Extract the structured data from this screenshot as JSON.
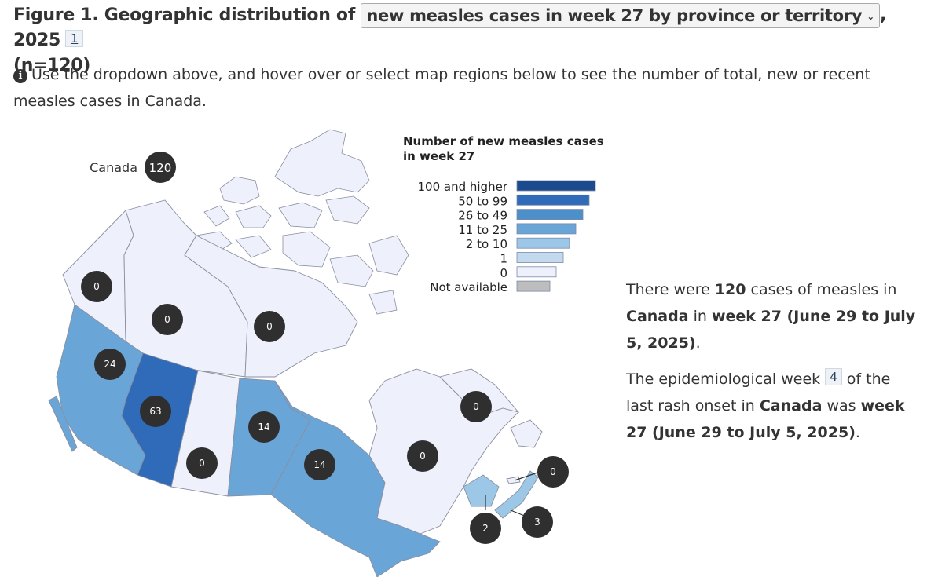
{
  "figure": {
    "title_prefix": "Figure 1. Geographic distribution of",
    "select_value": "new measles cases in week 27 by province or territory",
    "title_suffix": ", 2025",
    "footnote_ref": "1",
    "n_label": "(n=120)"
  },
  "instructions": {
    "icon": "info-icon",
    "text": "Use the dropdown above, and hover over or select map regions below to see the number of total, new or recent measles cases in Canada."
  },
  "map": {
    "national": {
      "label": "Canada",
      "value": "120"
    },
    "region_colors": {
      "very_high": "#1c4a8f",
      "high": "#2f6bb8",
      "mid": "#4d8fc9",
      "low_mid": "#6aa5d8",
      "low": "#9cc7e6",
      "one": "#c3d9ee",
      "zero": "#eef1fb",
      "na": "#bdbdbd",
      "border": "#8a8fa0",
      "bubble": "#2f2f2f"
    },
    "regions": [
      {
        "code": "YT",
        "value": "0",
        "class": "zero"
      },
      {
        "code": "NT",
        "value": "0",
        "class": "zero"
      },
      {
        "code": "NU",
        "value": "0",
        "class": "zero"
      },
      {
        "code": "BC",
        "value": "24",
        "class": "low_mid"
      },
      {
        "code": "AB",
        "value": "63",
        "class": "high"
      },
      {
        "code": "SK",
        "value": "0",
        "class": "zero"
      },
      {
        "code": "MB",
        "value": "14",
        "class": "low_mid"
      },
      {
        "code": "ON",
        "value": "14",
        "class": "low_mid"
      },
      {
        "code": "QC",
        "value": "0",
        "class": "zero"
      },
      {
        "code": "NL",
        "value": "0",
        "class": "zero"
      },
      {
        "code": "PE",
        "value": "0",
        "class": "zero"
      },
      {
        "code": "NB",
        "value": "2",
        "class": "low"
      },
      {
        "code": "NS",
        "value": "3",
        "class": "low"
      }
    ]
  },
  "legend": {
    "title_line1": "Number of new measles cases",
    "title_line2": "in week 27",
    "items": [
      {
        "label": "100 and higher",
        "color": "#1c4a8f",
        "width": 100
      },
      {
        "label": "50 to 99",
        "color": "#2f6bb8",
        "width": 92
      },
      {
        "label": "26 to 49",
        "color": "#4d8fc9",
        "width": 84
      },
      {
        "label": "11 to 25",
        "color": "#6aa5d8",
        "width": 75
      },
      {
        "label": "2 to 10",
        "color": "#9cc7e6",
        "width": 67
      },
      {
        "label": "1",
        "color": "#c3d9ee",
        "width": 59
      },
      {
        "label": "0",
        "color": "#eef1fb",
        "width": 50
      },
      {
        "label": "Not available",
        "color": "#bdbdbd",
        "width": 42
      }
    ]
  },
  "summary": {
    "p1_a": "There were ",
    "p1_count": "120",
    "p1_b": " cases of measles in ",
    "p1_place": "Canada",
    "p1_c": " in ",
    "p1_week": "week 27 (June 29 to July 5, 2025)",
    "p1_d": ".",
    "p2_a": "The epidemiological week ",
    "p2_fn": "4",
    "p2_b": " of the last rash onset in ",
    "p2_place": "Canada",
    "p2_c": " was ",
    "p2_week": "week 27 (June 29 to July 5, 2025)",
    "p2_d": "."
  }
}
